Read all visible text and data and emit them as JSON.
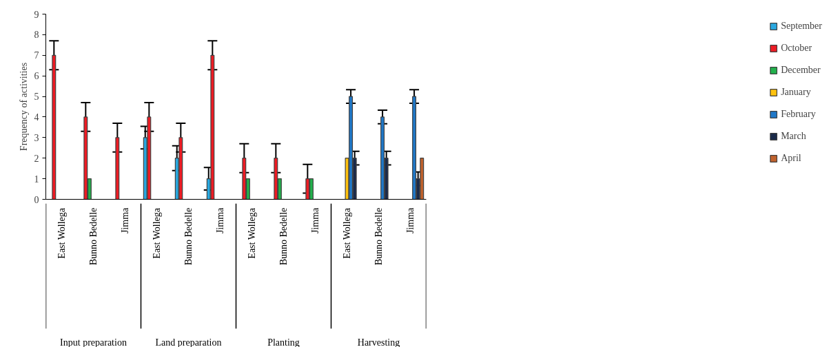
{
  "chart_data": {
    "type": "bar",
    "ylabel": "Frequency of activities",
    "categories": [
      "East Wollega",
      "Bunno Bedelle",
      "Jimma",
      "East Wollega",
      "Bunno Bedelle",
      "Jimma",
      "East Wollega",
      "Bunno Bedelle",
      "Jimma",
      "East Wollega",
      "Bunno Bedelle",
      "Jimma"
    ],
    "annotations": [
      "Input preparation",
      "Land preparation",
      "Planting",
      "Harvesting"
    ],
    "series": [
      {
        "name": "September",
        "color": "#29a8e0",
        "values": [
          null,
          null,
          null,
          3,
          2,
          1,
          null,
          null,
          null,
          null,
          null,
          null
        ],
        "errors": [
          null,
          null,
          null,
          0.55,
          0.6,
          0.55,
          null,
          null,
          null,
          null,
          null,
          null
        ]
      },
      {
        "name": "October",
        "color": "#ed1c24",
        "values": [
          7,
          4,
          3,
          4,
          3,
          7,
          2,
          2,
          1,
          null,
          null,
          null
        ],
        "errors": [
          0.7,
          0.7,
          0.7,
          0.7,
          0.7,
          0.7,
          0.7,
          0.7,
          0.7,
          null,
          null,
          null
        ]
      },
      {
        "name": "December",
        "color": "#22b14c",
        "values": [
          null,
          1,
          null,
          null,
          null,
          null,
          1,
          1,
          1,
          null,
          null,
          null
        ]
      },
      {
        "name": "January",
        "color": "#ffc20e",
        "values": [
          null,
          null,
          null,
          null,
          null,
          null,
          null,
          null,
          null,
          2,
          null,
          null
        ]
      },
      {
        "name": "February",
        "color": "#1f78c8",
        "values": [
          null,
          null,
          null,
          null,
          null,
          null,
          null,
          null,
          null,
          5,
          4,
          5
        ],
        "errors": [
          null,
          null,
          null,
          null,
          null,
          null,
          null,
          null,
          null,
          0.33,
          0.33,
          0.33
        ]
      },
      {
        "name": "March",
        "color": "#1a2a4a",
        "values": [
          null,
          null,
          null,
          null,
          null,
          null,
          null,
          null,
          null,
          2,
          2,
          1
        ],
        "errors": [
          null,
          null,
          null,
          null,
          null,
          null,
          null,
          null,
          null,
          0.33,
          0.33,
          0.33
        ]
      },
      {
        "name": "April",
        "color": "#c0622d",
        "values": [
          null,
          null,
          null,
          null,
          null,
          null,
          null,
          null,
          null,
          null,
          null,
          2
        ]
      }
    ],
    "ylim": [
      0,
      9
    ],
    "yticks": [
      0,
      1,
      2,
      3,
      4,
      5,
      6,
      7,
      8,
      9
    ],
    "grid": false,
    "legend": "right"
  }
}
